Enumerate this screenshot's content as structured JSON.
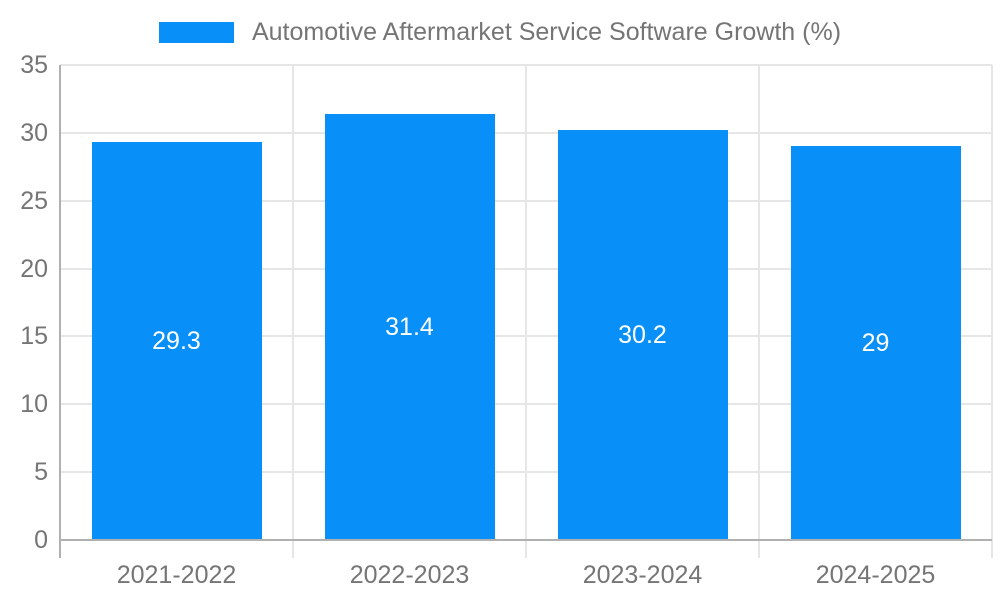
{
  "chart_data": {
    "type": "bar",
    "title": "",
    "categories": [
      "2021-2022",
      "2022-2023",
      "2023-2024",
      "2024-2025"
    ],
    "series": [
      {
        "name": "Automotive Aftermarket Service Software Growth (%)",
        "values": [
          29.3,
          31.4,
          30.2,
          29
        ]
      }
    ],
    "value_labels": [
      "29.3",
      "31.4",
      "30.2",
      "29"
    ],
    "xlabel": "",
    "ylabel": "",
    "ylim": [
      0,
      35
    ],
    "yticks": [
      0,
      5,
      10,
      15,
      20,
      25,
      30,
      35
    ],
    "grid": true,
    "legend_position": "top",
    "colors": {
      "bar": "#0990f8",
      "bar_value_label": "#ffffff",
      "axis_text": "#757575",
      "legend_text": "#757575",
      "gridline": "#e6e6e6",
      "axis_line": "#b0b0b0",
      "background": "#ffffff"
    }
  }
}
